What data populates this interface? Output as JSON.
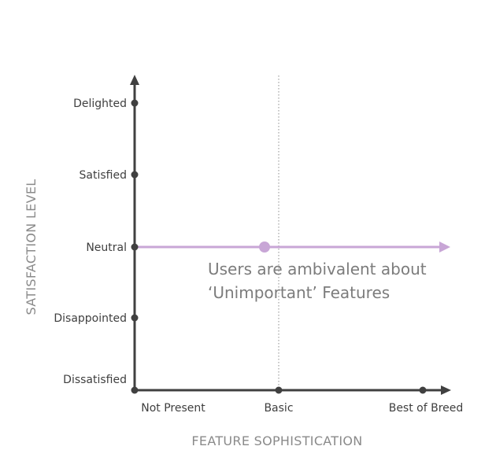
{
  "diagram": {
    "y_axis_title": "SATISFACTION LEVEL",
    "x_axis_title": "FEATURE SOPHISTICATION",
    "y_levels": [
      "Dissatisfied",
      "Disappointed",
      "Neutral",
      "Satisfied",
      "Delighted"
    ],
    "x_levels": [
      "Not Present",
      "Basic",
      "Best of Breed"
    ],
    "annotation_line1": "Users are ambivalent about",
    "annotation_line2": "‘Unimportant’ Features",
    "colors": {
      "axis": "#404040",
      "curve": "#c8a6d6",
      "guide": "#a0a0a0",
      "label": "#3f3f3f",
      "axis_title": "#8a8a8a",
      "annotation": "#7c7c7c"
    }
  }
}
